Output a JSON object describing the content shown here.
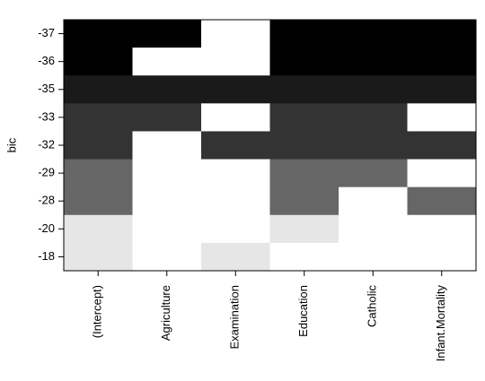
{
  "chart_data": {
    "type": "heatmap",
    "title": "",
    "xlabel": "",
    "ylabel": "bic",
    "columns": [
      "(Intercept)",
      "Agriculture",
      "Examination",
      "Education",
      "Catholic",
      "Infant.Mortality"
    ],
    "rows": [
      "-37",
      "-36",
      "-35",
      "-33",
      "-32",
      "-29",
      "-28",
      "-20",
      "-18"
    ],
    "cells": [
      [
        "#000000",
        "#000000",
        "#ffffff",
        "#000000",
        "#000000",
        "#000000"
      ],
      [
        "#000000",
        "#ffffff",
        "#ffffff",
        "#000000",
        "#000000",
        "#000000"
      ],
      [
        "#1a1a1a",
        "#1a1a1a",
        "#1a1a1a",
        "#1a1a1a",
        "#1a1a1a",
        "#1a1a1a"
      ],
      [
        "#333333",
        "#333333",
        "#ffffff",
        "#333333",
        "#333333",
        "#ffffff"
      ],
      [
        "#333333",
        "#ffffff",
        "#333333",
        "#333333",
        "#333333",
        "#333333"
      ],
      [
        "#666666",
        "#ffffff",
        "#ffffff",
        "#666666",
        "#666666",
        "#ffffff"
      ],
      [
        "#666666",
        "#ffffff",
        "#ffffff",
        "#666666",
        "#ffffff",
        "#666666"
      ],
      [
        "#e6e6e6",
        "#ffffff",
        "#ffffff",
        "#e6e6e6",
        "#ffffff",
        "#ffffff"
      ],
      [
        "#e6e6e6",
        "#ffffff",
        "#e6e6e6",
        "#ffffff",
        "#ffffff",
        "#ffffff"
      ]
    ],
    "grid": false,
    "legend": "none"
  }
}
